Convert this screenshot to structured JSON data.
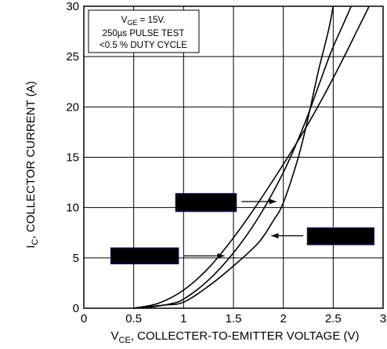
{
  "chart_data": {
    "type": "line",
    "title": "",
    "xlabel": {
      "prefix": "V",
      "subscript": "CE",
      "text": ", COLLECTER-TO-EMITTER VOLTAGE (V)"
    },
    "ylabel": {
      "prefix": "I",
      "subscript": "C",
      "text": ", COLLECTOR CURRENT (A)"
    },
    "xlim": [
      0,
      3
    ],
    "ylim": [
      0,
      30
    ],
    "xticks": [
      0,
      0.5,
      1,
      1.5,
      2,
      2.5,
      3
    ],
    "xtick_labels": [
      "0",
      "0.5",
      "1",
      "1.5",
      "2",
      "2.5",
      "3"
    ],
    "yticks": [
      0,
      5,
      10,
      15,
      20,
      25,
      30
    ],
    "ytick_labels": [
      "0",
      "5",
      "10",
      "15",
      "20",
      "25",
      "30"
    ],
    "grid": true,
    "annotation": {
      "line1_prefix": "V",
      "line1_sub": "GE",
      "line1_suffix": " = 15V.",
      "line2": "250µs PULSE TEST",
      "line3": "<0.5 % DUTY CYCLE"
    },
    "series": [
      {
        "values": [
          [
            0.5,
            0
          ],
          [
            0.75,
            0.5
          ],
          [
            1.0,
            1.8
          ],
          [
            1.25,
            4.0
          ],
          [
            1.5,
            7.0
          ],
          [
            1.75,
            10.5
          ],
          [
            2.0,
            14.3
          ],
          [
            2.2,
            17.5
          ],
          [
            2.4,
            21.0
          ],
          [
            2.6,
            24.8
          ],
          [
            2.75,
            27.8
          ],
          [
            2.86,
            30
          ]
        ]
      },
      {
        "values": [
          [
            0.6,
            0
          ],
          [
            0.85,
            0.4
          ],
          [
            1.0,
            0.9
          ],
          [
            1.25,
            2.8
          ],
          [
            1.5,
            5.5
          ],
          [
            1.75,
            9.0
          ],
          [
            2.0,
            13.5
          ],
          [
            2.2,
            18.0
          ],
          [
            2.35,
            22.0
          ],
          [
            2.48,
            25.5
          ],
          [
            2.6,
            28.2
          ],
          [
            2.68,
            30
          ]
        ]
      },
      {
        "values": [
          [
            0.5,
            0
          ],
          [
            0.8,
            0.3
          ],
          [
            1.0,
            0.6
          ],
          [
            1.25,
            2.2
          ],
          [
            1.5,
            4.2
          ],
          [
            1.75,
            6.5
          ],
          [
            1.9,
            8.7
          ],
          [
            2.0,
            10.5
          ],
          [
            2.15,
            15.0
          ],
          [
            2.25,
            19.0
          ],
          [
            2.35,
            23.5
          ],
          [
            2.45,
            27.5
          ],
          [
            2.5,
            30
          ]
        ]
      }
    ],
    "legend": "none"
  },
  "redactions": [
    {
      "x0": 0.92,
      "x1": 1.53,
      "y0": 9.6,
      "y1": 11.4,
      "arrow": [
        [
          1.58,
          10.6
        ],
        [
          1.93,
          10.6
        ]
      ]
    },
    {
      "x0": 2.24,
      "x1": 2.91,
      "y0": 6.3,
      "y1": 8.0,
      "arrow": [
        [
          2.2,
          7.2
        ],
        [
          1.88,
          7.2
        ]
      ]
    },
    {
      "x0": 0.27,
      "x1": 0.95,
      "y0": 4.4,
      "y1": 6.0,
      "arrow": [
        [
          1.0,
          5.2
        ],
        [
          1.41,
          5.2
        ]
      ]
    }
  ]
}
